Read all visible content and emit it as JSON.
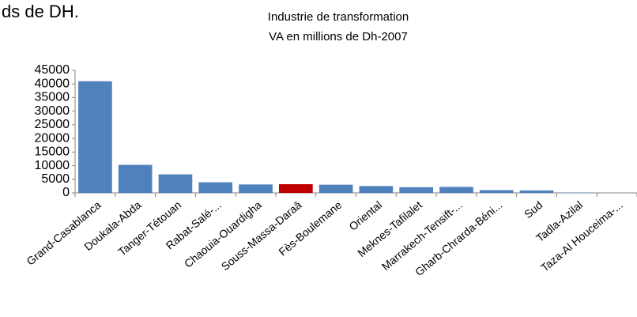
{
  "header_text": "ds de DH.",
  "chart_data": {
    "type": "bar",
    "title": [
      "Industrie de transformation",
      "VA en millions de Dh-2007"
    ],
    "categories": [
      "Grand-Casablanca",
      "Doukala-Abda",
      "Tanger-Tétouan",
      "Rabat-Salé-...",
      "Chaouia-Ouardigha",
      "Souss-Massa-Daraâ",
      "Fès-Boulemane",
      "Oriental",
      "Meknes-Tafilalet",
      "Marrakech-Tensift-...",
      "Gharb-Chrarda-Béni...",
      "Sud",
      "Tadla-Azilal",
      "Taza-Al Houceima-..."
    ],
    "values": [
      41000,
      10300,
      6800,
      3900,
      3100,
      3200,
      3000,
      2500,
      2100,
      2200,
      1000,
      900,
      100,
      0
    ],
    "colors": [
      "#4f81bd",
      "#4f81bd",
      "#4f81bd",
      "#4f81bd",
      "#4f81bd",
      "#c00000",
      "#4f81bd",
      "#4f81bd",
      "#4f81bd",
      "#4f81bd",
      "#4f81bd",
      "#4f81bd",
      "#4f81bd",
      "#4f81bd"
    ],
    "ylim": [
      0,
      45000
    ],
    "yticks": [
      0,
      5000,
      10000,
      15000,
      20000,
      25000,
      30000,
      35000,
      40000,
      45000
    ],
    "grid": false
  }
}
